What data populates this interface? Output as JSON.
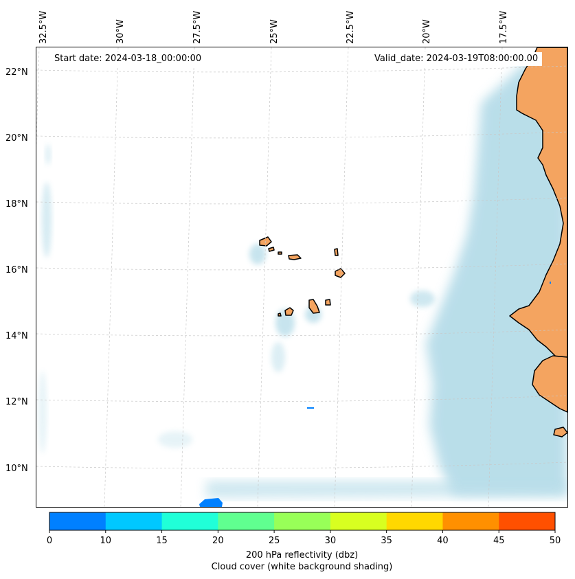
{
  "map": {
    "start_date": "Start date: 2024-03-18_00:00:00",
    "valid_date": "Valid_date: 2024-03-19T08:00:00.00",
    "lon_labels": [
      "32.5°W",
      "30°W",
      "27.5°W",
      "25°W",
      "22.5°W",
      "20°W",
      "17.5°W"
    ],
    "lat_labels": [
      "22°N",
      "20°N",
      "18°N",
      "16°N",
      "14°N",
      "12°N",
      "10°N"
    ],
    "colors": {
      "land": "#f4a460",
      "cloud": "#add8e6",
      "coast": "#000000",
      "gridline": "#c8c8c8"
    }
  },
  "colorbar": {
    "ticks": [
      "0",
      "10",
      "15",
      "20",
      "25",
      "30",
      "35",
      "40",
      "45",
      "50"
    ],
    "bins": [
      {
        "from": 0,
        "to": 10,
        "color": "#0080ff"
      },
      {
        "from": 10,
        "to": 15,
        "color": "#00c8ff"
      },
      {
        "from": 15,
        "to": 20,
        "color": "#20ffd8"
      },
      {
        "from": 20,
        "to": 25,
        "color": "#60ff90"
      },
      {
        "from": 25,
        "to": 30,
        "color": "#98ff58"
      },
      {
        "from": 30,
        "to": 35,
        "color": "#d8ff20"
      },
      {
        "from": 35,
        "to": 40,
        "color": "#ffd800"
      },
      {
        "from": 40,
        "to": 45,
        "color": "#ff9000"
      },
      {
        "from": 45,
        "to": 50,
        "color": "#ff5000"
      }
    ],
    "label_line1": "200 hPa reflectivity (dbz)",
    "label_line2": "Cloud cover (white background shading)"
  }
}
